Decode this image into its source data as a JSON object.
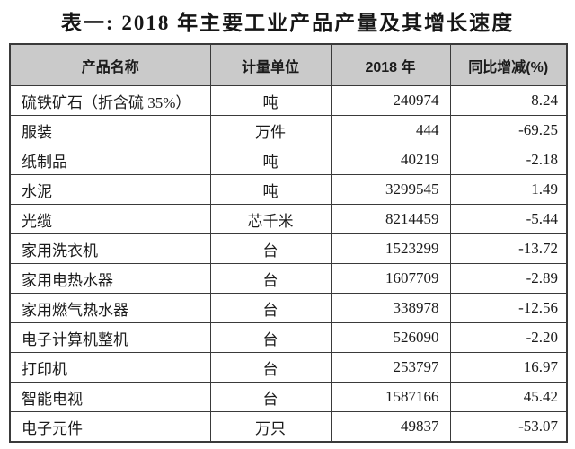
{
  "title": "表一: 2018 年主要工业产品产量及其增长速度",
  "table": {
    "columns": [
      "产品名称",
      "计量单位",
      "2018 年",
      "同比增减(%)"
    ],
    "rows": [
      {
        "name": "硫铁矿石（折含硫 35%）",
        "unit": "吨",
        "output_2018": "240974",
        "yoy_change": "8.24"
      },
      {
        "name": "服装",
        "unit": "万件",
        "output_2018": "444",
        "yoy_change": "-69.25"
      },
      {
        "name": "纸制品",
        "unit": "吨",
        "output_2018": "40219",
        "yoy_change": "-2.18"
      },
      {
        "name": "水泥",
        "unit": "吨",
        "output_2018": "3299545",
        "yoy_change": "1.49"
      },
      {
        "name": "光缆",
        "unit": "芯千米",
        "output_2018": "8214459",
        "yoy_change": "-5.44"
      },
      {
        "name": "家用洗衣机",
        "unit": "台",
        "output_2018": "1523299",
        "yoy_change": "-13.72"
      },
      {
        "name": "家用电热水器",
        "unit": "台",
        "output_2018": "1607709",
        "yoy_change": "-2.89"
      },
      {
        "name": "家用燃气热水器",
        "unit": "台",
        "output_2018": "338978",
        "yoy_change": "-12.56"
      },
      {
        "name": "电子计算机整机",
        "unit": "台",
        "output_2018": "526090",
        "yoy_change": "-2.20"
      },
      {
        "name": "打印机",
        "unit": "台",
        "output_2018": "253797",
        "yoy_change": "16.97"
      },
      {
        "name": "智能电视",
        "unit": "台",
        "output_2018": "1587166",
        "yoy_change": "45.42"
      },
      {
        "name": "电子元件",
        "unit": "万只",
        "output_2018": "49837",
        "yoy_change": "-53.07"
      }
    ]
  },
  "colors": {
    "header_bg": "#cacaca",
    "border": "#3a3a3a",
    "text": "#1b1b1b",
    "page_bg": "#ffffff"
  }
}
